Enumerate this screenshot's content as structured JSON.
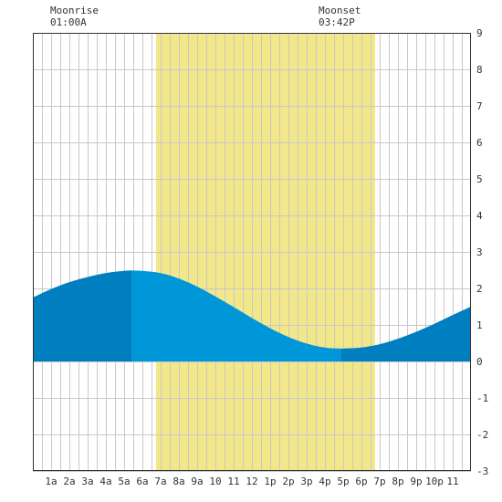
{
  "header": {
    "moonrise_label": "Moonrise",
    "moonrise_time": "01:00A",
    "moonset_label": "Moonset",
    "moonset_time": "03:42P"
  },
  "colors": {
    "daylight": "#f2e88a",
    "tide_light": "#0097d9",
    "tide_dark": "#007fc0",
    "grid": "#c8c8c8",
    "border": "#333333",
    "background": "#ffffff"
  },
  "chart_data": {
    "type": "area",
    "title": "",
    "xlabel": "",
    "ylabel": "",
    "xlim": [
      0,
      24
    ],
    "ylim": [
      -3,
      9
    ],
    "y_ticks": [
      9,
      8,
      7,
      6,
      5,
      4,
      3,
      2,
      1,
      0,
      -1,
      -2,
      -3
    ],
    "x_ticks": [
      {
        "x": 1,
        "label": "1a"
      },
      {
        "x": 2,
        "label": "2a"
      },
      {
        "x": 3,
        "label": "3a"
      },
      {
        "x": 4,
        "label": "4a"
      },
      {
        "x": 5,
        "label": "5a"
      },
      {
        "x": 6,
        "label": "6a"
      },
      {
        "x": 7,
        "label": "7a"
      },
      {
        "x": 8,
        "label": "8a"
      },
      {
        "x": 9,
        "label": "9a"
      },
      {
        "x": 10,
        "label": "10"
      },
      {
        "x": 11,
        "label": "11"
      },
      {
        "x": 12,
        "label": "12"
      },
      {
        "x": 13,
        "label": "1p"
      },
      {
        "x": 14,
        "label": "2p"
      },
      {
        "x": 15,
        "label": "3p"
      },
      {
        "x": 16,
        "label": "4p"
      },
      {
        "x": 17,
        "label": "5p"
      },
      {
        "x": 18,
        "label": "6p"
      },
      {
        "x": 19,
        "label": "7p"
      },
      {
        "x": 20,
        "label": "8p"
      },
      {
        "x": 21,
        "label": "9p"
      },
      {
        "x": 22,
        "label": "10p"
      },
      {
        "x": 23,
        "label": "11"
      }
    ],
    "grid": true,
    "daylight": {
      "start": 6.75,
      "end": 18.75
    },
    "night_segments": [
      {
        "start": 0,
        "end": 5.4
      },
      {
        "start": 16.9,
        "end": 24
      }
    ],
    "series": [
      {
        "x": [
          0,
          1,
          2,
          3,
          4,
          5,
          5.4,
          6,
          7,
          8,
          9,
          10,
          11,
          12,
          13,
          14,
          15,
          16,
          16.9,
          17,
          18,
          19,
          20,
          21,
          22,
          23,
          24
        ],
        "values": [
          1.75,
          1.98,
          2.17,
          2.31,
          2.42,
          2.48,
          2.49,
          2.48,
          2.42,
          2.27,
          2.05,
          1.78,
          1.49,
          1.19,
          0.91,
          0.67,
          0.49,
          0.38,
          0.35,
          0.35,
          0.38,
          0.47,
          0.62,
          0.81,
          1.03,
          1.27,
          1.5
        ]
      }
    ]
  }
}
